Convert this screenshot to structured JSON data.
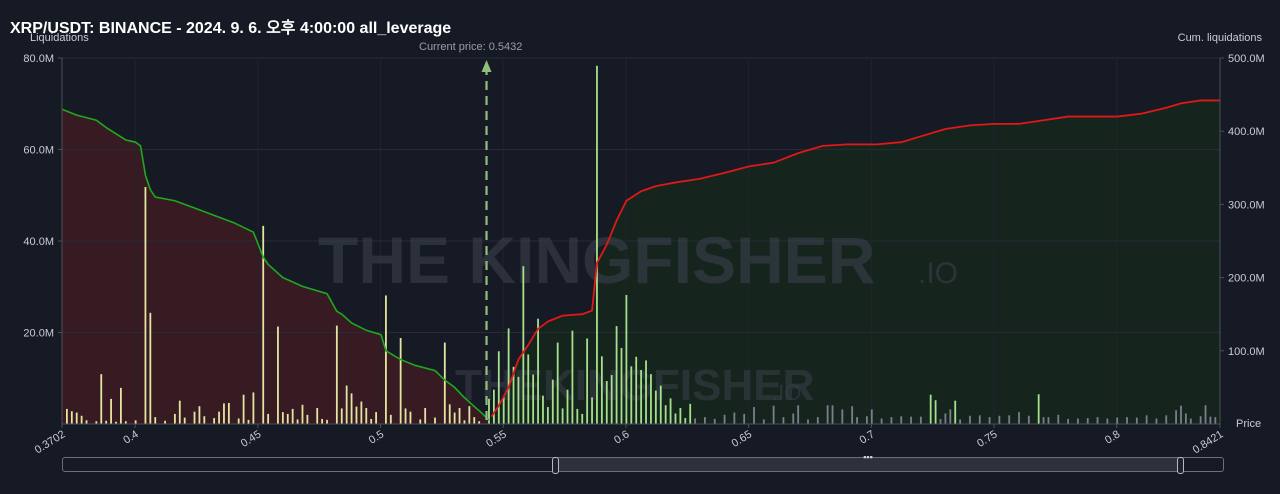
{
  "title": "XRP/USDT: BINANCE - 2024. 9. 6. 오후 4:00:00 all_leverage",
  "watermark": {
    "large": "THE KINGFISHER",
    "large_suffix": ".IO",
    "small": "THEKINGFISHER",
    "small_suffix": ".IO"
  },
  "chart_data": {
    "type": "bar",
    "title": "XRP/USDT: BINANCE - 2024. 9. 6. 오후 4:00:00 all_leverage",
    "ylabel": "Liquidations",
    "y2label": "Cum. liquidations",
    "xlabel": "Price",
    "current_price_label": "Current price: 0.5432",
    "current_price": 0.5432,
    "xlim": [
      0.3702,
      0.8421
    ],
    "ylim": [
      0,
      80000000
    ],
    "y2lim": [
      0,
      500000000
    ],
    "x_ticks": [
      "0.3702",
      "0.4",
      "0.45",
      "0.5",
      "0.55",
      "0.6",
      "0.65",
      "0.7",
      "0.75",
      "0.8",
      "0.8421"
    ],
    "y_ticks": [
      "20.0M",
      "40.0M",
      "60.0M",
      "80.0M"
    ],
    "y2_ticks": [
      "100.0M",
      "200.0M",
      "300.0M",
      "400.0M",
      "500.0M"
    ],
    "colors": {
      "bar_long": "#e3e6a0",
      "bar_short": "#a6e08c",
      "bar_far": "#7a7f8c",
      "cum_long": "#1fa81f",
      "cum_short": "#e01818",
      "fill_long": "#3a1a22",
      "fill_short": "#15261d",
      "current_price": "#8fbf7a"
    },
    "bars": [
      {
        "x": 0.3722,
        "y": 3.3
      },
      {
        "x": 0.3742,
        "y": 2.8
      },
      {
        "x": 0.3762,
        "y": 2.5
      },
      {
        "x": 0.3782,
        "y": 1.8
      },
      {
        "x": 0.3802,
        "y": 0.8
      },
      {
        "x": 0.3842,
        "y": 0.6
      },
      {
        "x": 0.3862,
        "y": 10.9
      },
      {
        "x": 0.3882,
        "y": 0.7
      },
      {
        "x": 0.3902,
        "y": 5.5
      },
      {
        "x": 0.3922,
        "y": 0.5
      },
      {
        "x": 0.3942,
        "y": 7.9
      },
      {
        "x": 0.3962,
        "y": 0.6
      },
      {
        "x": 0.4002,
        "y": 0.8
      },
      {
        "x": 0.4042,
        "y": 51.8
      },
      {
        "x": 0.4062,
        "y": 24.3
      },
      {
        "x": 0.4082,
        "y": 1.5
      },
      {
        "x": 0.4122,
        "y": 0.7
      },
      {
        "x": 0.4162,
        "y": 2.2
      },
      {
        "x": 0.4182,
        "y": 5.1
      },
      {
        "x": 0.4202,
        "y": 1.4
      },
      {
        "x": 0.4242,
        "y": 2.7
      },
      {
        "x": 0.4262,
        "y": 3.9
      },
      {
        "x": 0.4282,
        "y": 1.7
      },
      {
        "x": 0.4322,
        "y": 1.3
      },
      {
        "x": 0.4342,
        "y": 2.7
      },
      {
        "x": 0.4362,
        "y": 4.5
      },
      {
        "x": 0.4382,
        "y": 4.6
      },
      {
        "x": 0.4422,
        "y": 1.2
      },
      {
        "x": 0.4442,
        "y": 6.4
      },
      {
        "x": 0.4462,
        "y": 0.9
      },
      {
        "x": 0.4482,
        "y": 6.9
      },
      {
        "x": 0.4522,
        "y": 43.3
      },
      {
        "x": 0.4542,
        "y": 2.2
      },
      {
        "x": 0.4582,
        "y": 21.3
      },
      {
        "x": 0.4602,
        "y": 2.6
      },
      {
        "x": 0.4622,
        "y": 2.2
      },
      {
        "x": 0.4642,
        "y": 3.3
      },
      {
        "x": 0.4662,
        "y": 1.0
      },
      {
        "x": 0.4682,
        "y": 4.2
      },
      {
        "x": 0.4702,
        "y": 2.0
      },
      {
        "x": 0.4742,
        "y": 3.5
      },
      {
        "x": 0.4762,
        "y": 1.1
      },
      {
        "x": 0.4782,
        "y": 0.9
      },
      {
        "x": 0.4822,
        "y": 21.5
      },
      {
        "x": 0.4842,
        "y": 3.4
      },
      {
        "x": 0.4862,
        "y": 8.4
      },
      {
        "x": 0.4882,
        "y": 6.7
      },
      {
        "x": 0.4902,
        "y": 3.8
      },
      {
        "x": 0.4922,
        "y": 4.9
      },
      {
        "x": 0.4942,
        "y": 3.5
      },
      {
        "x": 0.4962,
        "y": 1.1
      },
      {
        "x": 0.4982,
        "y": 2.6
      },
      {
        "x": 0.5022,
        "y": 28.1
      },
      {
        "x": 0.5042,
        "y": 2.0
      },
      {
        "x": 0.5082,
        "y": 18.8
      },
      {
        "x": 0.5102,
        "y": 3.4
      },
      {
        "x": 0.5122,
        "y": 2.7
      },
      {
        "x": 0.5162,
        "y": 1.0
      },
      {
        "x": 0.5182,
        "y": 3.5
      },
      {
        "x": 0.5222,
        "y": 1.4
      },
      {
        "x": 0.5262,
        "y": 17.8
      },
      {
        "x": 0.5282,
        "y": 4.3
      },
      {
        "x": 0.5302,
        "y": 2.5
      },
      {
        "x": 0.5322,
        "y": 3.5
      },
      {
        "x": 0.5342,
        "y": 0.8
      },
      {
        "x": 0.5362,
        "y": 3.9
      },
      {
        "x": 0.5382,
        "y": 1.5
      },
      {
        "x": 0.5402,
        "y": 0.6
      },
      {
        "x": 0.5442,
        "y": 5.5
      },
      {
        "x": 0.5462,
        "y": 7.5
      },
      {
        "x": 0.5482,
        "y": 15.9
      },
      {
        "x": 0.5502,
        "y": 6.0
      },
      {
        "x": 0.5522,
        "y": 20.9
      },
      {
        "x": 0.5542,
        "y": 12.5
      },
      {
        "x": 0.5562,
        "y": 10.3
      },
      {
        "x": 0.5582,
        "y": 34.5
      },
      {
        "x": 0.5602,
        "y": 15.2
      },
      {
        "x": 0.5622,
        "y": 10.8
      },
      {
        "x": 0.5642,
        "y": 23.0
      },
      {
        "x": 0.5662,
        "y": 6.2
      },
      {
        "x": 0.5682,
        "y": 3.7
      },
      {
        "x": 0.5702,
        "y": 9.7
      },
      {
        "x": 0.5722,
        "y": 17.8
      },
      {
        "x": 0.5742,
        "y": 3.4
      },
      {
        "x": 0.5762,
        "y": 7.5
      },
      {
        "x": 0.5782,
        "y": 20.4
      },
      {
        "x": 0.5802,
        "y": 3.3
      },
      {
        "x": 0.5822,
        "y": 2.2
      },
      {
        "x": 0.5842,
        "y": 18.7
      },
      {
        "x": 0.5862,
        "y": 5.8
      },
      {
        "x": 0.5882,
        "y": 78.3
      },
      {
        "x": 0.5902,
        "y": 14.8
      },
      {
        "x": 0.5922,
        "y": 9.4
      },
      {
        "x": 0.5942,
        "y": 10.7
      },
      {
        "x": 0.5962,
        "y": 21.4
      },
      {
        "x": 0.5982,
        "y": 16.6
      },
      {
        "x": 0.6002,
        "y": 28.2
      },
      {
        "x": 0.6022,
        "y": 12.6
      },
      {
        "x": 0.6042,
        "y": 14.7
      },
      {
        "x": 0.6062,
        "y": 11.8
      },
      {
        "x": 0.6082,
        "y": 13.9
      },
      {
        "x": 0.6102,
        "y": 10.9
      },
      {
        "x": 0.6122,
        "y": 7.3
      },
      {
        "x": 0.6142,
        "y": 8.4
      },
      {
        "x": 0.6162,
        "y": 4.1
      },
      {
        "x": 0.6182,
        "y": 5.6
      },
      {
        "x": 0.6202,
        "y": 2.3
      },
      {
        "x": 0.6222,
        "y": 3.5
      },
      {
        "x": 0.6242,
        "y": 1.3
      },
      {
        "x": 0.6262,
        "y": 4.4
      },
      {
        "x": 0.6282,
        "y": 1.2
      },
      {
        "x": 0.6322,
        "y": 1.5
      },
      {
        "x": 0.6362,
        "y": 1.1
      },
      {
        "x": 0.6402,
        "y": 2.0
      },
      {
        "x": 0.6442,
        "y": 2.5
      },
      {
        "x": 0.6482,
        "y": 2.2
      },
      {
        "x": 0.6522,
        "y": 3.7
      },
      {
        "x": 0.6562,
        "y": 1.0
      },
      {
        "x": 0.6602,
        "y": 4.0
      },
      {
        "x": 0.6642,
        "y": 1.5
      },
      {
        "x": 0.6682,
        "y": 2.3
      },
      {
        "x": 0.6702,
        "y": 4.1
      },
      {
        "x": 0.6742,
        "y": 1.0
      },
      {
        "x": 0.6782,
        "y": 1.5
      },
      {
        "x": 0.6822,
        "y": 4.1
      },
      {
        "x": 0.6842,
        "y": 4.1
      },
      {
        "x": 0.6882,
        "y": 3.2
      },
      {
        "x": 0.6922,
        "y": 3.9
      },
      {
        "x": 0.6942,
        "y": 1.5
      },
      {
        "x": 0.6982,
        "y": 1.7
      },
      {
        "x": 0.7002,
        "y": 3.2
      },
      {
        "x": 0.7042,
        "y": 1.2
      },
      {
        "x": 0.7082,
        "y": 1.5
      },
      {
        "x": 0.7122,
        "y": 1.7
      },
      {
        "x": 0.7162,
        "y": 1.6
      },
      {
        "x": 0.7202,
        "y": 1.6
      },
      {
        "x": 0.7242,
        "y": 6.4
      },
      {
        "x": 0.7262,
        "y": 5.2
      },
      {
        "x": 0.7282,
        "y": 1.1
      },
      {
        "x": 0.7302,
        "y": 2.3
      },
      {
        "x": 0.7322,
        "y": 3.2
      },
      {
        "x": 0.7342,
        "y": 5.1
      },
      {
        "x": 0.7362,
        "y": 1.0
      },
      {
        "x": 0.7402,
        "y": 1.8
      },
      {
        "x": 0.7442,
        "y": 1.9
      },
      {
        "x": 0.7482,
        "y": 1.5
      },
      {
        "x": 0.7522,
        "y": 1.8
      },
      {
        "x": 0.7562,
        "y": 1.9
      },
      {
        "x": 0.7602,
        "y": 2.6
      },
      {
        "x": 0.7642,
        "y": 1.8
      },
      {
        "x": 0.7682,
        "y": 6.5
      },
      {
        "x": 0.7702,
        "y": 1.5
      },
      {
        "x": 0.7722,
        "y": 1.5
      },
      {
        "x": 0.7762,
        "y": 2.0
      },
      {
        "x": 0.7802,
        "y": 1.1
      },
      {
        "x": 0.7842,
        "y": 1.2
      },
      {
        "x": 0.7882,
        "y": 1.3
      },
      {
        "x": 0.7922,
        "y": 1.5
      },
      {
        "x": 0.7962,
        "y": 1.2
      },
      {
        "x": 0.8002,
        "y": 1.4
      },
      {
        "x": 0.8042,
        "y": 1.5
      },
      {
        "x": 0.8082,
        "y": 1.4
      },
      {
        "x": 0.8122,
        "y": 1.9
      },
      {
        "x": 0.8162,
        "y": 1.2
      },
      {
        "x": 0.8202,
        "y": 1.9
      },
      {
        "x": 0.8242,
        "y": 3.0
      },
      {
        "x": 0.8262,
        "y": 4.0
      },
      {
        "x": 0.8282,
        "y": 2.3
      },
      {
        "x": 0.8302,
        "y": 1.2
      },
      {
        "x": 0.8342,
        "y": 1.7
      },
      {
        "x": 0.8362,
        "y": 4.1
      },
      {
        "x": 0.8382,
        "y": 1.6
      },
      {
        "x": 0.8402,
        "y": 1.5
      }
    ],
    "cum_long_series": [
      {
        "x": 0.3702,
        "y": 430
      },
      {
        "x": 0.3762,
        "y": 422
      },
      {
        "x": 0.3842,
        "y": 415
      },
      {
        "x": 0.3882,
        "y": 405
      },
      {
        "x": 0.3962,
        "y": 388
      },
      {
        "x": 0.4002,
        "y": 385
      },
      {
        "x": 0.4022,
        "y": 380
      },
      {
        "x": 0.4042,
        "y": 340
      },
      {
        "x": 0.4062,
        "y": 320
      },
      {
        "x": 0.4082,
        "y": 310
      },
      {
        "x": 0.4162,
        "y": 305
      },
      {
        "x": 0.4242,
        "y": 295
      },
      {
        "x": 0.4322,
        "y": 285
      },
      {
        "x": 0.4402,
        "y": 275
      },
      {
        "x": 0.4482,
        "y": 262
      },
      {
        "x": 0.4522,
        "y": 228
      },
      {
        "x": 0.4542,
        "y": 218
      },
      {
        "x": 0.4602,
        "y": 200
      },
      {
        "x": 0.4682,
        "y": 188
      },
      {
        "x": 0.4782,
        "y": 178
      },
      {
        "x": 0.4822,
        "y": 154
      },
      {
        "x": 0.4842,
        "y": 150
      },
      {
        "x": 0.4882,
        "y": 138
      },
      {
        "x": 0.4942,
        "y": 128
      },
      {
        "x": 0.5002,
        "y": 122
      },
      {
        "x": 0.5022,
        "y": 100
      },
      {
        "x": 0.5082,
        "y": 88
      },
      {
        "x": 0.5142,
        "y": 80
      },
      {
        "x": 0.5222,
        "y": 73
      },
      {
        "x": 0.5262,
        "y": 60
      },
      {
        "x": 0.5302,
        "y": 50
      },
      {
        "x": 0.5342,
        "y": 36
      },
      {
        "x": 0.5382,
        "y": 24
      },
      {
        "x": 0.5422,
        "y": 12
      },
      {
        "x": 0.5442,
        "y": 5
      }
    ],
    "cum_short_series": [
      {
        "x": 0.5452,
        "y": 10
      },
      {
        "x": 0.5482,
        "y": 25
      },
      {
        "x": 0.5522,
        "y": 50
      },
      {
        "x": 0.5562,
        "y": 88
      },
      {
        "x": 0.5602,
        "y": 108
      },
      {
        "x": 0.5642,
        "y": 130
      },
      {
        "x": 0.5682,
        "y": 140
      },
      {
        "x": 0.5742,
        "y": 148
      },
      {
        "x": 0.5822,
        "y": 150
      },
      {
        "x": 0.5862,
        "y": 155
      },
      {
        "x": 0.5882,
        "y": 220
      },
      {
        "x": 0.5922,
        "y": 245
      },
      {
        "x": 0.5962,
        "y": 278
      },
      {
        "x": 0.6002,
        "y": 305
      },
      {
        "x": 0.6062,
        "y": 318
      },
      {
        "x": 0.6122,
        "y": 325
      },
      {
        "x": 0.6202,
        "y": 330
      },
      {
        "x": 0.6302,
        "y": 335
      },
      {
        "x": 0.6402,
        "y": 343
      },
      {
        "x": 0.6502,
        "y": 352
      },
      {
        "x": 0.6602,
        "y": 357
      },
      {
        "x": 0.6702,
        "y": 370
      },
      {
        "x": 0.6802,
        "y": 380
      },
      {
        "x": 0.6902,
        "y": 382
      },
      {
        "x": 0.7022,
        "y": 382
      },
      {
        "x": 0.7122,
        "y": 385
      },
      {
        "x": 0.7202,
        "y": 393
      },
      {
        "x": 0.7302,
        "y": 403
      },
      {
        "x": 0.7402,
        "y": 408
      },
      {
        "x": 0.7502,
        "y": 410
      },
      {
        "x": 0.7602,
        "y": 410
      },
      {
        "x": 0.7702,
        "y": 415
      },
      {
        "x": 0.7802,
        "y": 420
      },
      {
        "x": 0.7902,
        "y": 420
      },
      {
        "x": 0.8002,
        "y": 420
      },
      {
        "x": 0.8102,
        "y": 424
      },
      {
        "x": 0.8202,
        "y": 432
      },
      {
        "x": 0.8262,
        "y": 438
      },
      {
        "x": 0.8302,
        "y": 440
      },
      {
        "x": 0.8342,
        "y": 442
      },
      {
        "x": 0.8421,
        "y": 442
      }
    ]
  }
}
